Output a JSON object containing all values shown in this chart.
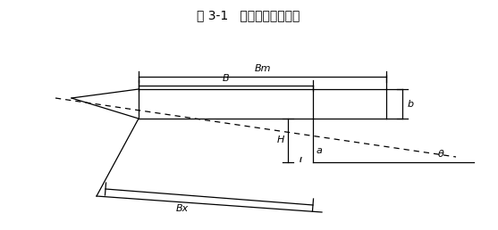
{
  "title": "图 3-1   水平梯田断面图示",
  "title_fontsize": 10,
  "bg_color": "#ffffff",
  "line_color": "#000000",
  "fig_width": 5.57,
  "fig_height": 2.58,
  "dpi": 100,
  "labels": {
    "Bm": "Bm",
    "B": "B",
    "b": "b",
    "H": "H",
    "a": "a",
    "theta": "θ",
    "Bx": "Bx"
  }
}
